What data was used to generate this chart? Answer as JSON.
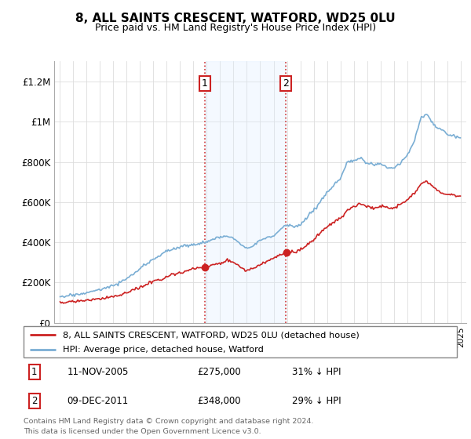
{
  "title": "8, ALL SAINTS CRESCENT, WATFORD, WD25 0LU",
  "subtitle": "Price paid vs. HM Land Registry's House Price Index (HPI)",
  "footer": "Contains HM Land Registry data © Crown copyright and database right 2024.\nThis data is licensed under the Open Government Licence v3.0.",
  "legend_line1": "8, ALL SAINTS CRESCENT, WATFORD, WD25 0LU (detached house)",
  "legend_line2": "HPI: Average price, detached house, Watford",
  "annotation1": {
    "label": "1",
    "date": "11-NOV-2005",
    "price": "£275,000",
    "hpi": "31% ↓ HPI"
  },
  "annotation2": {
    "label": "2",
    "date": "09-DEC-2011",
    "price": "£348,000",
    "hpi": "29% ↓ HPI"
  },
  "hpi_color": "#7aaed4",
  "price_color": "#cc2222",
  "shading_color": "#ddeeff",
  "ylim": [
    0,
    1300000
  ],
  "yticks": [
    0,
    200000,
    400000,
    600000,
    800000,
    1000000,
    1200000
  ],
  "ytick_labels": [
    "£0",
    "£200K",
    "£400K",
    "£600K",
    "£800K",
    "£1M",
    "£1.2M"
  ],
  "ann1_year": 2005.87,
  "ann2_year": 2011.92,
  "ann1_price": 275000,
  "ann2_price": 348000
}
